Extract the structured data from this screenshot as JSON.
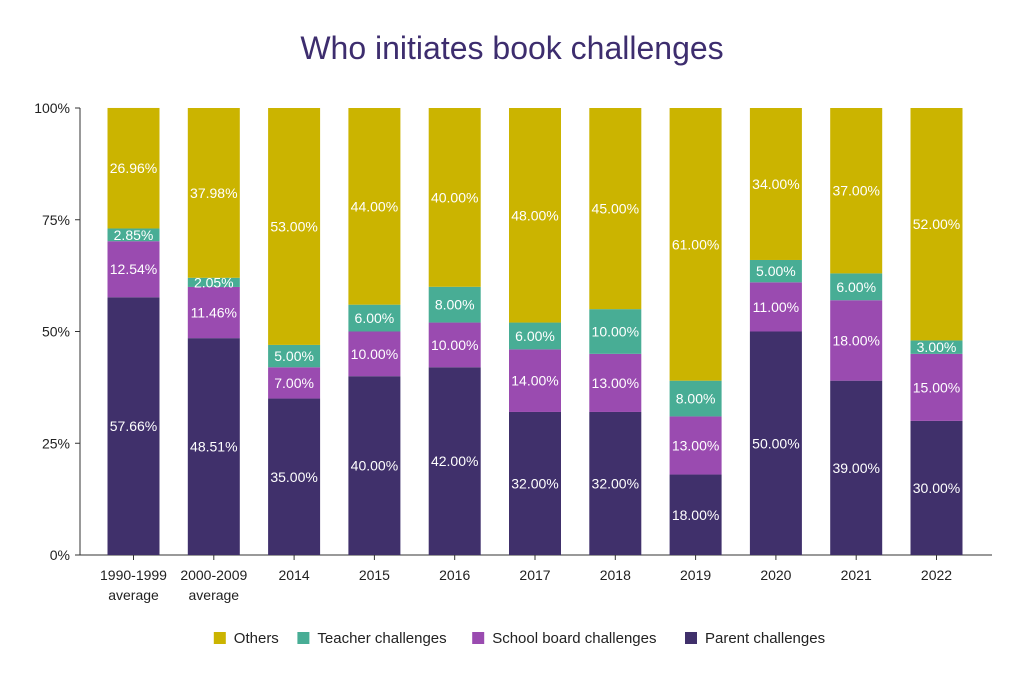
{
  "chart_data": {
    "type": "bar",
    "stacked": true,
    "title": "Who initiates book challenges",
    "categories": [
      [
        "1990-1999",
        "average"
      ],
      [
        "2000-2009",
        "average"
      ],
      [
        "2014"
      ],
      [
        "2015"
      ],
      [
        "2016"
      ],
      [
        "2017"
      ],
      [
        "2018"
      ],
      [
        "2019"
      ],
      [
        "2020"
      ],
      [
        "2021"
      ],
      [
        "2022"
      ]
    ],
    "ylim": [
      0,
      100
    ],
    "y_ticks": [
      {
        "value": 0,
        "label": "0%"
      },
      {
        "value": 25,
        "label": "25%"
      },
      {
        "value": 50,
        "label": "50%"
      },
      {
        "value": 75,
        "label": "75%"
      },
      {
        "value": 100,
        "label": "100%"
      }
    ],
    "grid": false,
    "legend_position": "bottom",
    "series": [
      {
        "name": "Parent challenges",
        "color": "#40306b",
        "values": [
          57.66,
          48.51,
          35.0,
          40.0,
          42.0,
          32.0,
          32.0,
          18.0,
          50.0,
          39.0,
          30.0
        ],
        "labels": [
          "57.66%",
          "48.51%",
          "35.00%",
          "40.00%",
          "42.00%",
          "32.00%",
          "32.00%",
          "18.00%",
          "50.00%",
          "39.00%",
          "30.00%"
        ]
      },
      {
        "name": "School board challenges",
        "color": "#9a4bb0",
        "values": [
          12.54,
          11.46,
          7.0,
          10.0,
          10.0,
          14.0,
          13.0,
          13.0,
          11.0,
          18.0,
          15.0
        ],
        "labels": [
          "12.54%",
          "11.46%",
          "7.00%",
          "10.00%",
          "10.00%",
          "14.00%",
          "13.00%",
          "13.00%",
          "11.00%",
          "18.00%",
          "15.00%"
        ]
      },
      {
        "name": "Teacher challenges",
        "color": "#48ad95",
        "values": [
          2.85,
          2.05,
          5.0,
          6.0,
          8.0,
          6.0,
          10.0,
          8.0,
          5.0,
          6.0,
          3.0
        ],
        "labels": [
          "2.85%",
          "2.05%",
          "5.00%",
          "6.00%",
          "8.00%",
          "6.00%",
          "10.00%",
          "8.00%",
          "5.00%",
          "6.00%",
          "3.00%"
        ]
      },
      {
        "name": "Others",
        "color": "#cbb400",
        "values": [
          26.96,
          37.98,
          53.0,
          44.0,
          40.0,
          48.0,
          45.0,
          61.0,
          34.0,
          37.0,
          52.0
        ],
        "labels": [
          "26.96%",
          "37.98%",
          "53.00%",
          "44.00%",
          "40.00%",
          "48.00%",
          "45.00%",
          "61.00%",
          "34.00%",
          "37.00%",
          "52.00%"
        ]
      }
    ],
    "legend_order": [
      "Others",
      "Teacher challenges",
      "School board challenges",
      "Parent challenges"
    ]
  }
}
